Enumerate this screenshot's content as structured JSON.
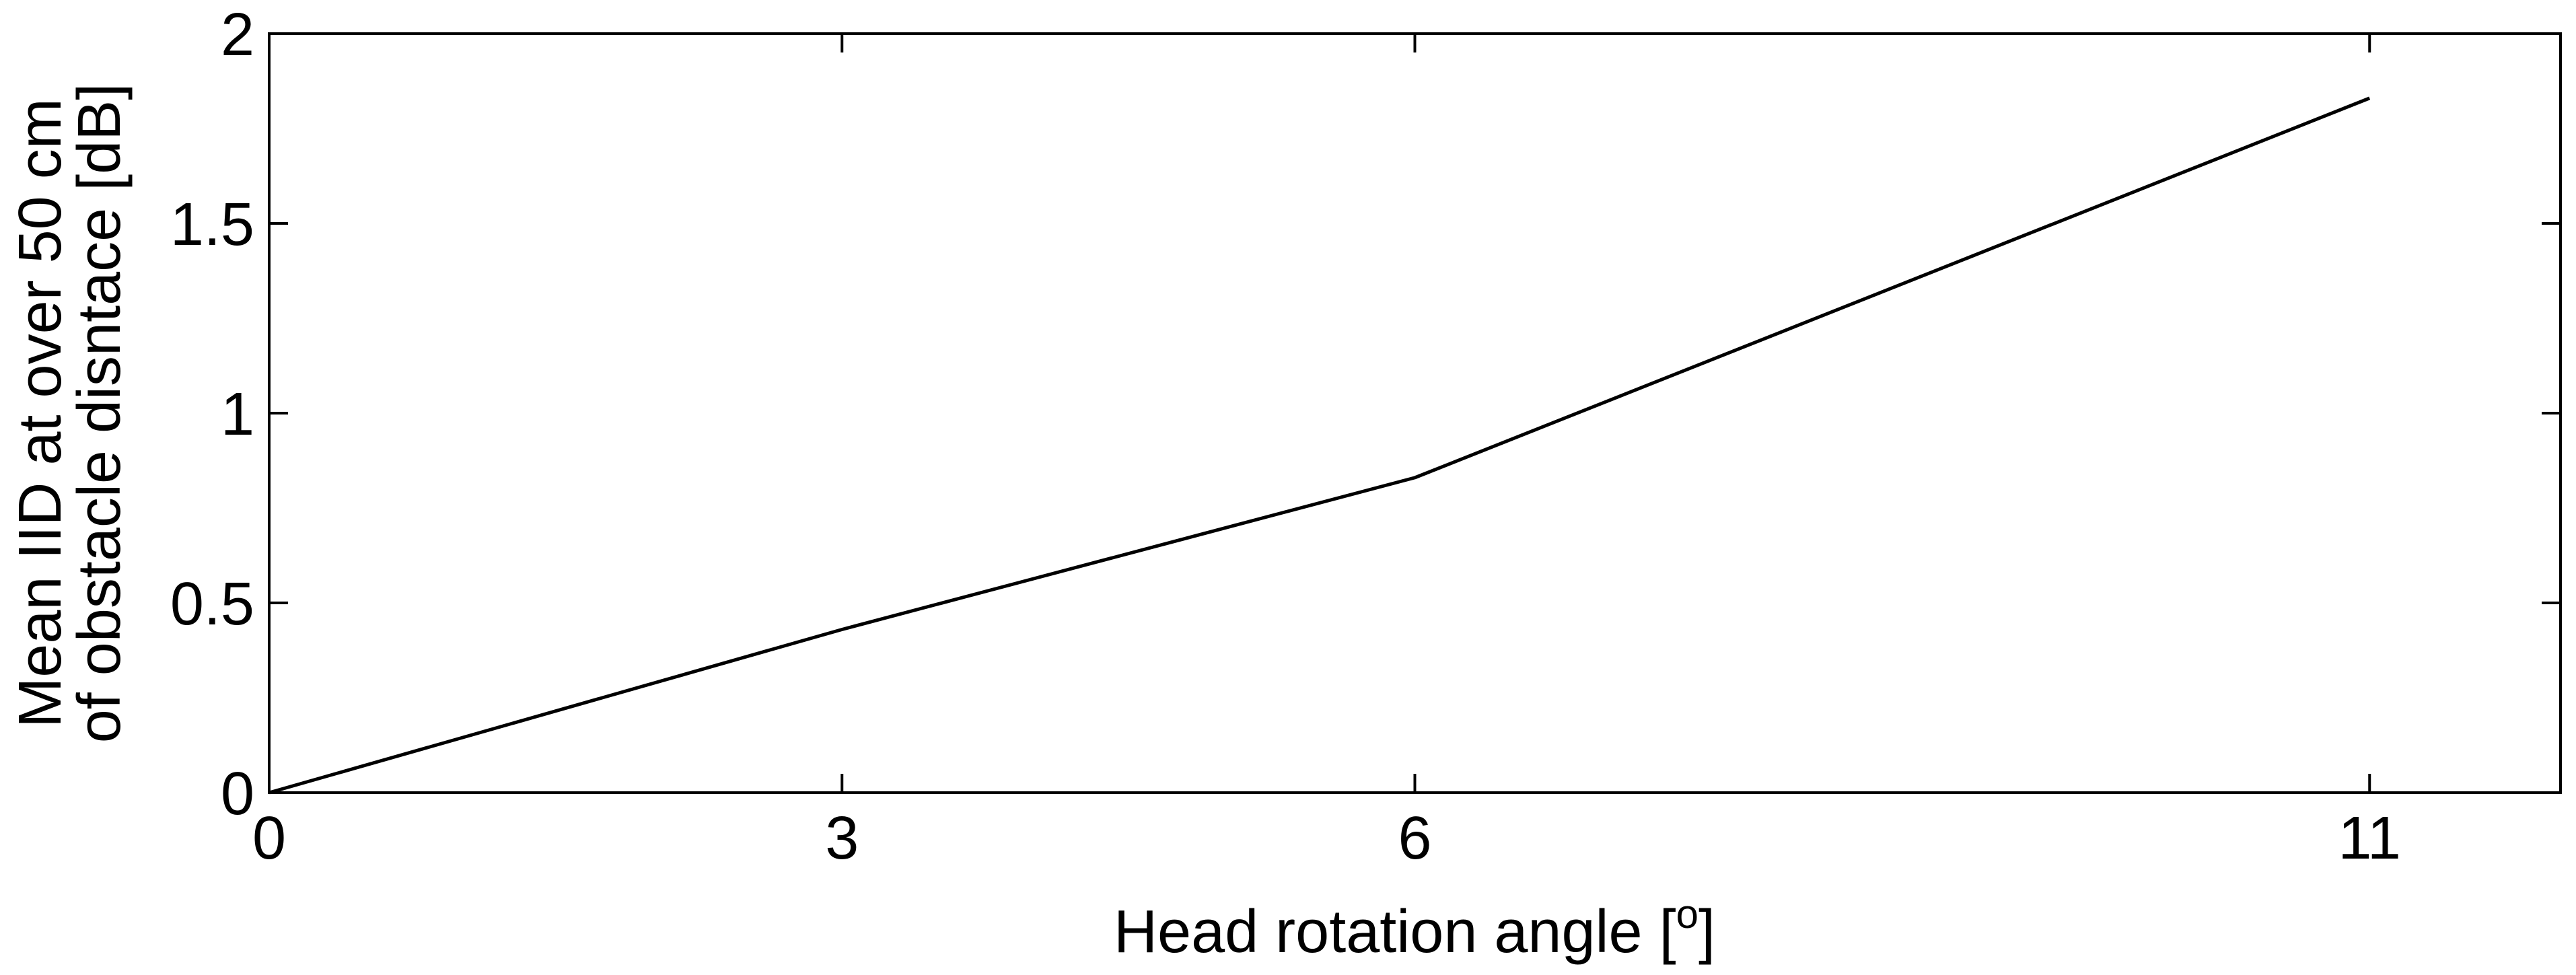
{
  "chart_data": {
    "type": "line",
    "xlabel": "Head rotation angle [",
    "xlabel_superscript": "o",
    "xlabel_suffix": "]",
    "ylabel_line1": "Mean IID at over 50 cm",
    "ylabel_line2": "of obstacle disntace [dB]",
    "xlim": [
      0,
      12
    ],
    "ylim": [
      0,
      2
    ],
    "x_ticks": [
      0,
      3,
      6,
      11
    ],
    "x_tick_labels": [
      "0",
      "3",
      "6",
      "11"
    ],
    "y_ticks": [
      0,
      0.5,
      1,
      1.5,
      2
    ],
    "y_tick_labels": [
      "0",
      "0.5",
      "1",
      "1.5",
      "2"
    ],
    "grid": false,
    "line_color": "#000000",
    "series": [
      {
        "x": [
          0,
          3,
          6,
          11
        ],
        "y": [
          0,
          0.43,
          0.83,
          1.83
        ]
      }
    ]
  }
}
